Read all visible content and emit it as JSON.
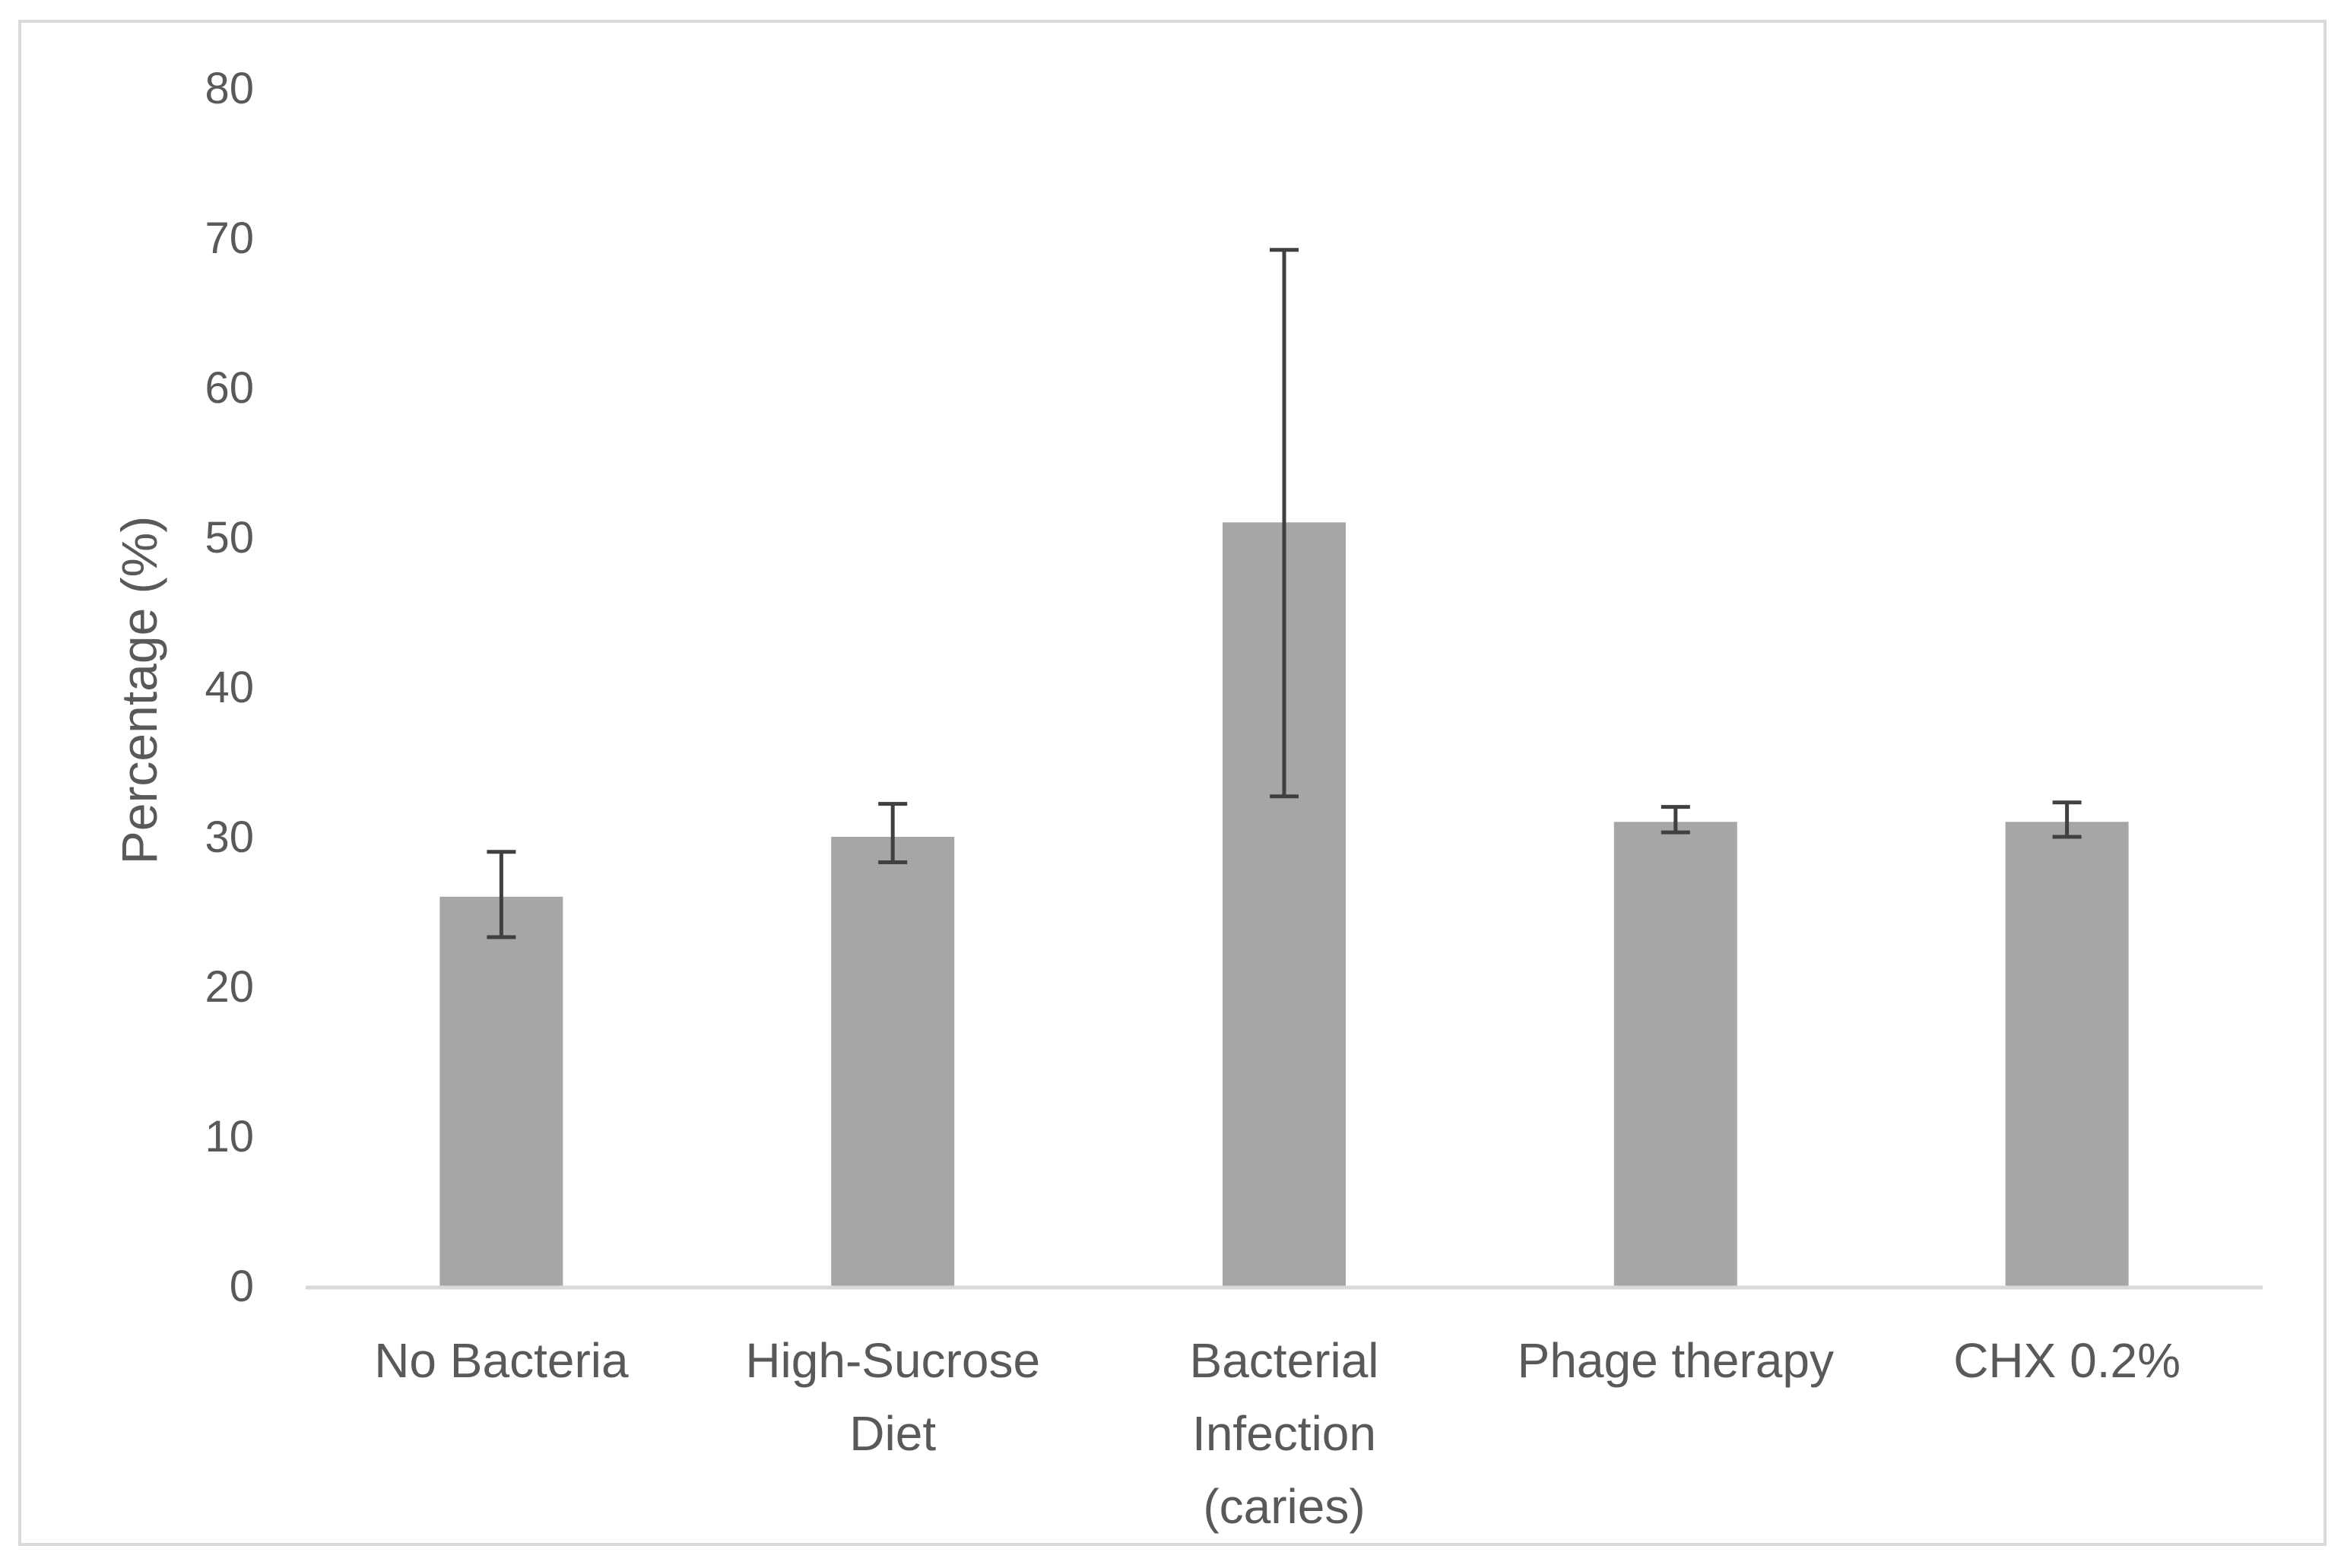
{
  "chart_data": {
    "type": "bar",
    "title": "",
    "xlabel": "",
    "ylabel": "Percentage (%)",
    "ylim": [
      0,
      80
    ],
    "yticks": [
      0,
      10,
      20,
      30,
      40,
      50,
      60,
      70,
      80
    ],
    "ytick_labels": [
      "0",
      "10",
      "20",
      "30",
      "40",
      "50",
      "60",
      "70",
      "80"
    ],
    "grid": false,
    "legend": "none",
    "categories": [
      [
        "No Bacteria"
      ],
      [
        "High-Sucrose",
        "Diet"
      ],
      [
        "Bacterial",
        "Infection",
        "(caries)"
      ],
      [
        "Phage therapy"
      ],
      [
        "CHX 0.2%"
      ]
    ],
    "values": [
      26,
      30,
      51,
      31,
      31
    ],
    "error_low": [
      23.3,
      28.3,
      32.7,
      30.3,
      30
    ],
    "error_high": [
      29,
      32.2,
      69.2,
      32,
      32.3
    ],
    "bar_color": "#a6a6a6",
    "error_bar_color": "#404040",
    "axis_color": "#d9d9d9",
    "text_color": "#595959"
  }
}
